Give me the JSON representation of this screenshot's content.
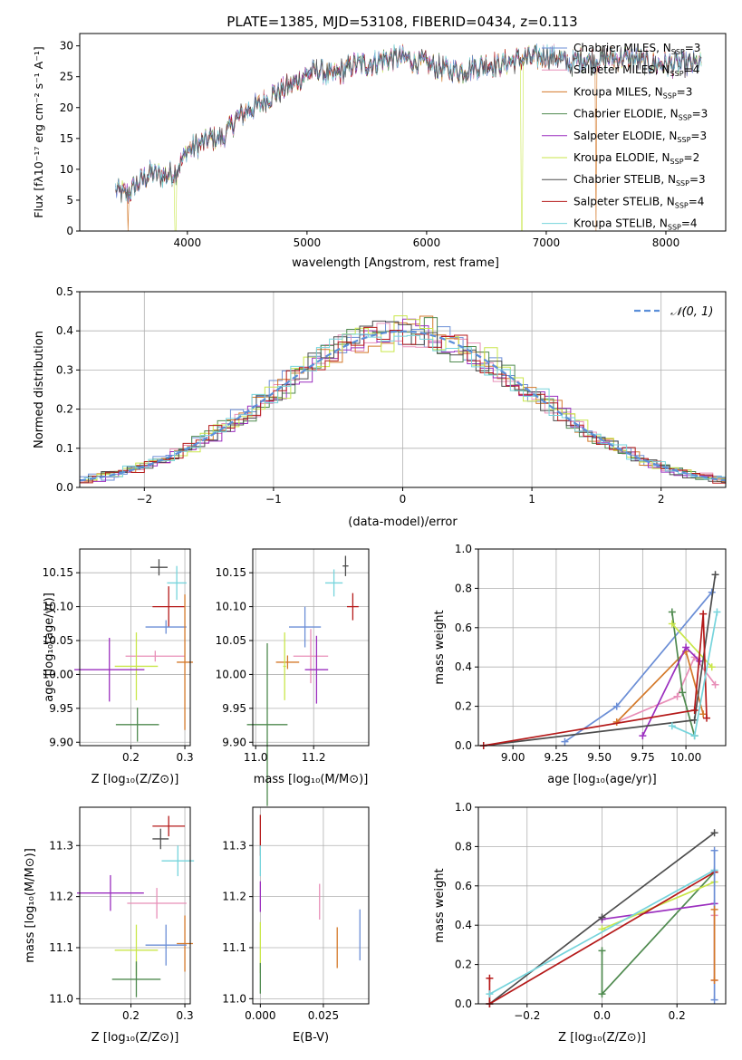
{
  "colors": {
    "chab_miles": "#6b8ed6",
    "salp_miles": "#e88fb8",
    "krou_miles": "#d4792a",
    "chab_elodie": "#4f8a4f",
    "salp_elodie": "#9b2fbf",
    "krou_elodie": "#c9e64a",
    "chab_stelib": "#4d4d4d",
    "salp_stelib": "#b51a1a",
    "krou_stelib": "#76d4dc",
    "normal": "#5b8fd9"
  },
  "chart_data": [
    {
      "id": "spectrum",
      "type": "line",
      "title": "PLATE=1385, MJD=53108, FIBERID=0434, z=0.113",
      "xlabel": "wavelength [Angstrom, rest frame]",
      "ylabel": "Flux [fλ10⁻¹⁷ erg cm⁻² s⁻¹ A⁻¹]",
      "xlim": [
        3100,
        8500
      ],
      "ylim": [
        0,
        32
      ],
      "xticks": [
        "4000",
        "5000",
        "6000",
        "7000",
        "8000"
      ],
      "yticks": [
        "0",
        "5",
        "10",
        "15",
        "20",
        "25",
        "30"
      ],
      "legend_position": "upper-right",
      "legend": [
        {
          "label": "Chabrier MILES, N",
          "sub": "SSP",
          "suffix": "=3",
          "color_key": "chab_miles"
        },
        {
          "label": "Salpeter MILES, N",
          "sub": "SSP",
          "suffix": "=4",
          "color_key": "salp_miles"
        },
        {
          "label": "Kroupa MILES, N",
          "sub": "SSP",
          "suffix": "=3",
          "color_key": "krou_miles"
        },
        {
          "label": "Chabrier ELODIE, N",
          "sub": "SSP",
          "suffix": "=3",
          "color_key": "chab_elodie"
        },
        {
          "label": "Salpeter ELODIE, N",
          "sub": "SSP",
          "suffix": "=3",
          "color_key": "salp_elodie"
        },
        {
          "label": "Kroupa ELODIE, N",
          "sub": "SSP",
          "suffix": "=2",
          "color_key": "krou_elodie"
        },
        {
          "label": "Chabrier STELIB, N",
          "sub": "SSP",
          "suffix": "=3",
          "color_key": "chab_stelib"
        },
        {
          "label": "Salpeter STELIB, N",
          "sub": "SSP",
          "suffix": "=4",
          "color_key": "salp_stelib"
        },
        {
          "label": "Kroupa STELIB, N",
          "sub": "SSP",
          "suffix": "=4",
          "color_key": "krou_stelib"
        }
      ],
      "continuum": [
        [
          3400,
          6.5
        ],
        [
          3500,
          6.0
        ],
        [
          3600,
          8.0
        ],
        [
          3700,
          9.5
        ],
        [
          3800,
          9.0
        ],
        [
          3900,
          9.5
        ],
        [
          4000,
          13
        ],
        [
          4100,
          14
        ],
        [
          4200,
          15
        ],
        [
          4300,
          15
        ],
        [
          4400,
          18
        ],
        [
          4500,
          19.5
        ],
        [
          4600,
          20.5
        ],
        [
          4700,
          22
        ],
        [
          4800,
          23
        ],
        [
          4900,
          24
        ],
        [
          5000,
          25.5
        ],
        [
          5100,
          26
        ],
        [
          5200,
          25
        ],
        [
          5300,
          26
        ],
        [
          5400,
          27
        ],
        [
          5500,
          27
        ],
        [
          5600,
          27.5
        ],
        [
          5700,
          28
        ],
        [
          5800,
          28
        ],
        [
          5900,
          27.5
        ],
        [
          6000,
          27
        ],
        [
          6100,
          26.5
        ],
        [
          6200,
          26
        ],
        [
          6300,
          26
        ],
        [
          6400,
          26.5
        ],
        [
          6500,
          27
        ],
        [
          6600,
          27
        ],
        [
          6700,
          27.5
        ],
        [
          6800,
          28
        ],
        [
          6900,
          28
        ],
        [
          7000,
          28.5
        ],
        [
          7100,
          28
        ],
        [
          7200,
          27
        ],
        [
          7300,
          28
        ],
        [
          7400,
          27.5
        ],
        [
          7500,
          28
        ],
        [
          7600,
          28
        ],
        [
          7700,
          28
        ],
        [
          7800,
          27.5
        ],
        [
          7900,
          27
        ],
        [
          8000,
          27
        ],
        [
          8100,
          27
        ],
        [
          8200,
          27
        ],
        [
          8300,
          27
        ]
      ],
      "dropouts": [
        {
          "series": "krou_miles",
          "x": [
            3500,
            3510
          ]
        },
        {
          "series": "krou_elodie",
          "x": [
            3895,
            3905
          ]
        },
        {
          "series": "krou_elodie",
          "x": [
            6790,
            6800
          ]
        },
        {
          "series": "krou_miles",
          "x": [
            7410,
            7420
          ]
        }
      ]
    },
    {
      "id": "residuals",
      "type": "histogram",
      "xlabel": "(data-model)/error",
      "ylabel": "Normed distribution",
      "xlim": [
        -2.5,
        2.5
      ],
      "ylim": [
        0,
        0.5
      ],
      "xticks": [
        "−2",
        "−1",
        "0",
        "1",
        "2"
      ],
      "yticks": [
        "0.0",
        "0.1",
        "0.2",
        "0.3",
        "0.4",
        "0.5"
      ],
      "grid": true,
      "legend_position": "upper-right",
      "normal_label": "𝒩(0, 1)",
      "bin_width": 0.1
    },
    {
      "id": "z_age",
      "type": "errorbar",
      "xlabel": "Z [log₁₀(Z/Z⊙)]",
      "ylabel": "age  [log₁₀(age/yr)]",
      "xlim": [
        0.105,
        0.31
      ],
      "ylim": [
        9.895,
        10.185
      ],
      "xticks": [
        {
          "v": 0.2,
          "t": "0.2"
        },
        {
          "v": 0.3,
          "t": "0.3"
        }
      ],
      "yticks": [
        {
          "v": 9.9,
          "t": "9.90"
        },
        {
          "v": 9.95,
          "t": "9.95"
        },
        {
          "v": 10.0,
          "t": "10.00"
        },
        {
          "v": 10.05,
          "t": "10.05"
        },
        {
          "v": 10.1,
          "t": "10.10"
        },
        {
          "v": 10.15,
          "t": "10.15"
        }
      ],
      "points": [
        {
          "k": "chab_stelib",
          "x": 0.252,
          "y": 10.158,
          "xe": 0.016,
          "ye": 0.012
        },
        {
          "k": "krou_stelib",
          "x": 0.285,
          "y": 10.135,
          "xe": 0.018,
          "ye": 0.025
        },
        {
          "k": "salp_stelib",
          "x": 0.27,
          "y": 10.1,
          "xe": 0.03,
          "ye": 0.03
        },
        {
          "k": "chab_miles",
          "x": 0.265,
          "y": 10.07,
          "xe": 0.038,
          "ye": 0.01
        },
        {
          "k": "salp_miles",
          "x": 0.245,
          "y": 10.027,
          "xe": 0.055,
          "ye": 0.008
        },
        {
          "k": "krou_miles",
          "x": 0.3,
          "y": 10.018,
          "xe": 0.015,
          "ye": 0.1
        },
        {
          "k": "krou_elodie",
          "x": 0.21,
          "y": 10.012,
          "xe": 0.04,
          "ye": 0.05
        },
        {
          "k": "salp_elodie",
          "x": 0.16,
          "y": 10.007,
          "xe": 0.065,
          "ye": 0.047
        },
        {
          "k": "chab_elodie",
          "x": 0.212,
          "y": 9.926,
          "xe": 0.04,
          "ye": 0.025
        }
      ]
    },
    {
      "id": "mass_age",
      "type": "errorbar",
      "xlabel": "mass [log₁₀(M/M⊙)]",
      "ylabel": "",
      "xlim": [
        10.99,
        11.39
      ],
      "ylim": [
        9.895,
        10.185
      ],
      "xticks": [
        {
          "v": 11.0,
          "t": "11.0"
        },
        {
          "v": 11.2,
          "t": "11.2"
        }
      ],
      "yticks": [
        {
          "v": 9.9,
          "t": "9.90"
        },
        {
          "v": 9.95,
          "t": "9.95"
        },
        {
          "v": 10.0,
          "t": "10.00"
        },
        {
          "v": 10.05,
          "t": "10.05"
        },
        {
          "v": 10.1,
          "t": "10.10"
        },
        {
          "v": 10.15,
          "t": "10.15"
        }
      ],
      "points": [
        {
          "k": "chab_stelib",
          "x": 11.31,
          "y": 10.16,
          "xe": 0.01,
          "ye": 0.015
        },
        {
          "k": "krou_stelib",
          "x": 11.27,
          "y": 10.135,
          "xe": 0.03,
          "ye": 0.02
        },
        {
          "k": "salp_stelib",
          "x": 11.335,
          "y": 10.1,
          "xe": 0.02,
          "ye": 0.02
        },
        {
          "k": "chab_miles",
          "x": 11.17,
          "y": 10.07,
          "xe": 0.055,
          "ye": 0.03
        },
        {
          "k": "salp_miles",
          "x": 11.19,
          "y": 10.027,
          "xe": 0.06,
          "ye": 0.04
        },
        {
          "k": "krou_miles",
          "x": 11.11,
          "y": 10.018,
          "xe": 0.04,
          "ye": 0.01
        },
        {
          "k": "krou_elodie",
          "x": 11.1,
          "y": 10.012,
          "xe": 0.005,
          "ye": 0.05
        },
        {
          "k": "salp_elodie",
          "x": 11.21,
          "y": 10.007,
          "xe": 0.04,
          "ye": 0.05
        },
        {
          "k": "chab_elodie",
          "x": 11.04,
          "y": 9.926,
          "xe": 0.07,
          "ye": 0.12
        }
      ]
    },
    {
      "id": "age_weight",
      "type": "line",
      "xlabel": "age  [log₁₀(age/yr)]",
      "ylabel": "mass weight",
      "xlim": [
        8.8,
        10.23
      ],
      "ylim": [
        0,
        1.0
      ],
      "xticks": [
        {
          "v": 9.0,
          "t": "9.00"
        },
        {
          "v": 9.25,
          "t": "9.25"
        },
        {
          "v": 9.5,
          "t": "9.50"
        },
        {
          "v": 9.75,
          "t": "9.75"
        },
        {
          "v": 10.0,
          "t": "10.00"
        }
      ],
      "yticks": [
        {
          "v": 0,
          "t": "0.0"
        },
        {
          "v": 0.2,
          "t": "0.2"
        },
        {
          "v": 0.4,
          "t": "0.4"
        },
        {
          "v": 0.6,
          "t": "0.6"
        },
        {
          "v": 0.8,
          "t": "0.8"
        },
        {
          "v": 1.0,
          "t": "1.0"
        }
      ],
      "series": [
        {
          "k": "chab_miles",
          "x": [
            9.3,
            9.6,
            10.15
          ],
          "y": [
            0.02,
            0.2,
            0.78
          ]
        },
        {
          "k": "salp_miles",
          "x": [
            9.6,
            9.95,
            10.05,
            10.17
          ],
          "y": [
            0.12,
            0.25,
            0.45,
            0.31
          ]
        },
        {
          "k": "krou_miles",
          "x": [
            9.6,
            10.0,
            10.1
          ],
          "y": [
            0.12,
            0.48,
            0.16
          ]
        },
        {
          "k": "chab_elodie",
          "x": [
            9.92,
            9.98,
            10.05
          ],
          "y": [
            0.68,
            0.27,
            0.05
          ]
        },
        {
          "k": "salp_elodie",
          "x": [
            9.75,
            10.0,
            10.08
          ],
          "y": [
            0.05,
            0.5,
            0.43
          ]
        },
        {
          "k": "krou_elodie",
          "x": [
            9.92,
            10.15
          ],
          "y": [
            0.62,
            0.4
          ]
        },
        {
          "k": "chab_stelib",
          "x": [
            8.83,
            10.05,
            10.17
          ],
          "y": [
            0.0,
            0.13,
            0.87
          ]
        },
        {
          "k": "salp_stelib",
          "x": [
            8.83,
            10.05,
            10.1,
            10.12
          ],
          "y": [
            0.0,
            0.18,
            0.67,
            0.14
          ]
        },
        {
          "k": "krou_stelib",
          "x": [
            9.92,
            10.05,
            10.18
          ],
          "y": [
            0.1,
            0.05,
            0.68
          ]
        }
      ]
    },
    {
      "id": "z_mass",
      "type": "errorbar",
      "xlabel": "Z [log₁₀(Z/Z⊙)]",
      "ylabel": "mass [log₁₀(M/M⊙)]",
      "xlim": [
        0.105,
        0.31
      ],
      "ylim": [
        10.99,
        11.375
      ],
      "xticks": [
        {
          "v": 0.2,
          "t": "0.2"
        },
        {
          "v": 0.3,
          "t": "0.3"
        }
      ],
      "yticks": [
        {
          "v": 11.0,
          "t": "11.0"
        },
        {
          "v": 11.1,
          "t": "11.1"
        },
        {
          "v": 11.2,
          "t": "11.2"
        },
        {
          "v": 11.3,
          "t": "11.3"
        }
      ],
      "points": [
        {
          "k": "salp_stelib",
          "x": 0.27,
          "y": 11.338,
          "xe": 0.03,
          "ye": 0.02
        },
        {
          "k": "chab_stelib",
          "x": 0.255,
          "y": 11.313,
          "xe": 0.015,
          "ye": 0.02
        },
        {
          "k": "krou_stelib",
          "x": 0.287,
          "y": 11.27,
          "xe": 0.03,
          "ye": 0.03
        },
        {
          "k": "salp_elodie",
          "x": 0.162,
          "y": 11.207,
          "xe": 0.062,
          "ye": 0.035
        },
        {
          "k": "salp_miles",
          "x": 0.248,
          "y": 11.187,
          "xe": 0.055,
          "ye": 0.03
        },
        {
          "k": "krou_miles",
          "x": 0.3,
          "y": 11.108,
          "xe": 0.015,
          "ye": 0.055
        },
        {
          "k": "chab_miles",
          "x": 0.265,
          "y": 11.105,
          "xe": 0.038,
          "ye": 0.04
        },
        {
          "k": "krou_elodie",
          "x": 0.21,
          "y": 11.095,
          "xe": 0.04,
          "ye": 0.05
        },
        {
          "k": "chab_elodie",
          "x": 0.21,
          "y": 11.038,
          "xe": 0.045,
          "ye": 0.035
        }
      ]
    },
    {
      "id": "ebv_mass",
      "type": "errorbar",
      "xlabel": "E(B-V)",
      "ylabel": "",
      "xlim": [
        -0.003,
        0.043
      ],
      "ylim": [
        10.99,
        11.375
      ],
      "xticks": [
        {
          "v": 0.0,
          "t": "0.000"
        },
        {
          "v": 0.025,
          "t": "0.025"
        }
      ],
      "yticks": [
        {
          "v": 11.0,
          "t": "11.0"
        },
        {
          "v": 11.1,
          "t": "11.1"
        },
        {
          "v": 11.2,
          "t": "11.2"
        },
        {
          "v": 11.3,
          "t": "11.3"
        }
      ],
      "points": [
        {
          "k": "salp_stelib",
          "x": 0.0,
          "y": 11.32,
          "xe": 0,
          "ye": 0.04
        },
        {
          "k": "krou_stelib",
          "x": 0.0,
          "y": 11.27,
          "xe": 0,
          "ye": 0.03
        },
        {
          "k": "salp_elodie",
          "x": 0.0,
          "y": 11.2,
          "xe": 0,
          "ye": 0.03
        },
        {
          "k": "krou_elodie",
          "x": 0.0,
          "y": 11.1,
          "xe": 0,
          "ye": 0.05
        },
        {
          "k": "chab_elodie",
          "x": 0.0,
          "y": 11.04,
          "xe": 0,
          "ye": 0.03
        },
        {
          "k": "salp_miles",
          "x": 0.0235,
          "y": 11.19,
          "xe": 0,
          "ye": 0.035
        },
        {
          "k": "krou_miles",
          "x": 0.0305,
          "y": 11.1,
          "xe": 0,
          "ye": 0.04
        },
        {
          "k": "chab_miles",
          "x": 0.0395,
          "y": 11.125,
          "xe": 0,
          "ye": 0.05
        }
      ]
    },
    {
      "id": "z_weight",
      "type": "line",
      "xlabel": "Z [log₁₀(Z/Z⊙)]",
      "ylabel": "mass weight",
      "xlim": [
        -0.33,
        0.33
      ],
      "ylim": [
        0,
        1.0
      ],
      "xticks": [
        {
          "v": -0.2,
          "t": "−0.2"
        },
        {
          "v": 0.0,
          "t": "0.0"
        },
        {
          "v": 0.2,
          "t": "0.2"
        }
      ],
      "yticks": [
        {
          "v": 0,
          "t": "0.0"
        },
        {
          "v": 0.2,
          "t": "0.2"
        },
        {
          "v": 0.4,
          "t": "0.4"
        },
        {
          "v": 0.6,
          "t": "0.6"
        },
        {
          "v": 0.8,
          "t": "0.8"
        },
        {
          "v": 1.0,
          "t": "1.0"
        }
      ],
      "series": [
        {
          "k": "chab_elodie",
          "x": [
            0.0,
            0.0,
            0.3
          ],
          "y": [
            0.27,
            0.05,
            0.67
          ]
        },
        {
          "k": "salp_elodie",
          "x": [
            0.0,
            0.3
          ],
          "y": [
            0.43,
            0.51
          ]
        },
        {
          "k": "krou_elodie",
          "x": [
            0.0,
            0.3
          ],
          "y": [
            0.38,
            0.62
          ]
        },
        {
          "k": "chab_stelib",
          "x": [
            -0.3,
            0.0,
            0.3
          ],
          "y": [
            0.0,
            0.44,
            0.87
          ]
        },
        {
          "k": "salp_stelib",
          "x": [
            -0.3,
            -0.3,
            0.3
          ],
          "y": [
            0.13,
            0.0,
            0.67
          ]
        },
        {
          "k": "krou_stelib",
          "x": [
            -0.3,
            0.3
          ],
          "y": [
            0.05,
            0.68
          ]
        },
        {
          "k": "chab_miles",
          "x": [
            0.3,
            0.3
          ],
          "y": [
            0.02,
            0.78
          ]
        },
        {
          "k": "salp_miles",
          "x": [
            0.3,
            0.3
          ],
          "y": [
            0.12,
            0.45
          ]
        },
        {
          "k": "krou_miles",
          "x": [
            0.3,
            0.3
          ],
          "y": [
            0.12,
            0.48
          ]
        }
      ]
    }
  ]
}
